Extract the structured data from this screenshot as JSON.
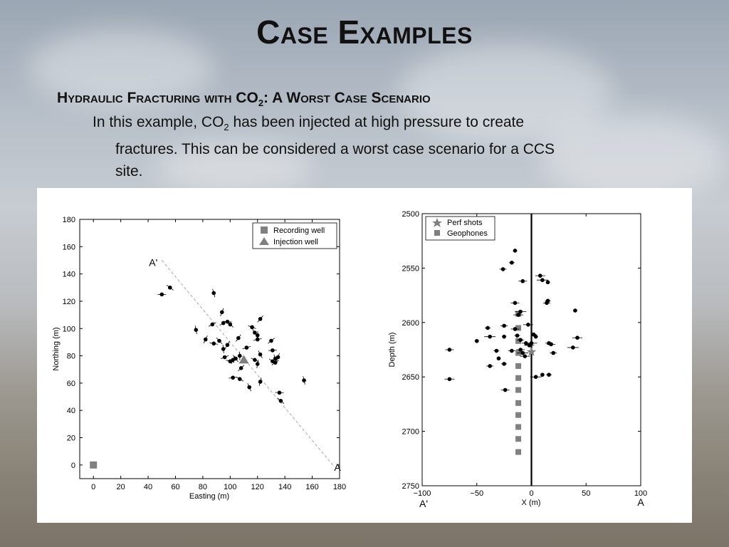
{
  "slide": {
    "title": "Case Examples",
    "subtitle_pre": "Hydraulic Fracturing with CO",
    "subtitle_sub": "2",
    "subtitle_post": ": A Worst Case Scenario",
    "body_pre": "In this example, CO",
    "body_sub": "2",
    "body_line1_post": " has been injected at high pressure to create",
    "body_line2": "fractures. This can be considered a worst case scenario for a CCS",
    "body_line3": "site."
  },
  "colors": {
    "marker_gray": "#808080",
    "event_black": "#000000",
    "section_line": "#aaaaaa"
  },
  "chart_data": [
    {
      "type": "scatter",
      "title": "",
      "xlabel": "Easting (m)",
      "ylabel": "Northing (m)",
      "xlim": [
        -10,
        180
      ],
      "ylim": [
        -10,
        180
      ],
      "xticks": [
        0,
        20,
        40,
        60,
        80,
        100,
        120,
        140,
        160,
        180
      ],
      "yticks": [
        0,
        20,
        40,
        60,
        80,
        100,
        120,
        140,
        160,
        180
      ],
      "legend": {
        "placement": "top-right",
        "entries": [
          "Recording well",
          "Injection well"
        ]
      },
      "recording_well": {
        "x": 0,
        "y": 0
      },
      "injection_well": {
        "x": 110,
        "y": 77
      },
      "section_line": {
        "start": {
          "x": 50,
          "y": 150
        },
        "end": {
          "x": 175,
          "y": 0
        },
        "start_label": "A'",
        "end_label": "A"
      },
      "events": [
        {
          "x": 50,
          "y": 125
        },
        {
          "x": 56,
          "y": 130
        },
        {
          "x": 88,
          "y": 126
        },
        {
          "x": 94,
          "y": 112
        },
        {
          "x": 95,
          "y": 104
        },
        {
          "x": 98,
          "y": 105
        },
        {
          "x": 100,
          "y": 103
        },
        {
          "x": 75,
          "y": 99
        },
        {
          "x": 82,
          "y": 92
        },
        {
          "x": 87,
          "y": 103
        },
        {
          "x": 88,
          "y": 89
        },
        {
          "x": 92,
          "y": 91
        },
        {
          "x": 95,
          "y": 85
        },
        {
          "x": 98,
          "y": 88
        },
        {
          "x": 96,
          "y": 79
        },
        {
          "x": 100,
          "y": 76
        },
        {
          "x": 104,
          "y": 78
        },
        {
          "x": 107,
          "y": 80
        },
        {
          "x": 106,
          "y": 93
        },
        {
          "x": 112,
          "y": 86
        },
        {
          "x": 116,
          "y": 101
        },
        {
          "x": 118,
          "y": 97
        },
        {
          "x": 120,
          "y": 95
        },
        {
          "x": 122,
          "y": 107
        },
        {
          "x": 120,
          "y": 92
        },
        {
          "x": 118,
          "y": 77
        },
        {
          "x": 122,
          "y": 81
        },
        {
          "x": 120,
          "y": 74
        },
        {
          "x": 108,
          "y": 71
        },
        {
          "x": 102,
          "y": 64
        },
        {
          "x": 107,
          "y": 63
        },
        {
          "x": 114,
          "y": 57
        },
        {
          "x": 122,
          "y": 61
        },
        {
          "x": 130,
          "y": 91
        },
        {
          "x": 131,
          "y": 84
        },
        {
          "x": 131,
          "y": 76
        },
        {
          "x": 133,
          "y": 78
        },
        {
          "x": 135,
          "y": 79
        },
        {
          "x": 133,
          "y": 75
        },
        {
          "x": 136,
          "y": 53
        },
        {
          "x": 137,
          "y": 47
        },
        {
          "x": 154,
          "y": 62
        },
        {
          "x": 102,
          "y": 77
        }
      ]
    },
    {
      "type": "scatter",
      "title": "",
      "xlabel": "X (m)",
      "ylabel": "Depth (m)",
      "xlim": [
        -100,
        100
      ],
      "ylim": [
        2750,
        2500
      ],
      "xticks": [
        -100,
        -50,
        0,
        50,
        100
      ],
      "yticks": [
        2500,
        2550,
        2600,
        2650,
        2700,
        2750
      ],
      "legend": {
        "placement": "top-left",
        "entries": [
          "Perf shots",
          "Geophones"
        ]
      },
      "well_x": 0,
      "section_labels": {
        "left": "A'",
        "right": "A"
      },
      "perf_shots": [
        {
          "x": 0,
          "y": 2627
        }
      ],
      "geophones": [
        {
          "x": -12,
          "y": 2592
        },
        {
          "x": -12,
          "y": 2605
        },
        {
          "x": -12,
          "y": 2617
        },
        {
          "x": -12,
          "y": 2628
        },
        {
          "x": -12,
          "y": 2640
        },
        {
          "x": -12,
          "y": 2651
        },
        {
          "x": -12,
          "y": 2662
        },
        {
          "x": -12,
          "y": 2674
        },
        {
          "x": -12,
          "y": 2685
        },
        {
          "x": -12,
          "y": 2696
        },
        {
          "x": -12,
          "y": 2707
        },
        {
          "x": -12,
          "y": 2719
        }
      ],
      "events": [
        {
          "x": -15,
          "y": 2534
        },
        {
          "x": -18,
          "y": 2545
        },
        {
          "x": -26,
          "y": 2551
        },
        {
          "x": -8,
          "y": 2562
        },
        {
          "x": 8,
          "y": 2557
        },
        {
          "x": 10,
          "y": 2561
        },
        {
          "x": 15,
          "y": 2563
        },
        {
          "x": 15,
          "y": 2580
        },
        {
          "x": 14,
          "y": 2582
        },
        {
          "x": -15,
          "y": 2582
        },
        {
          "x": -12,
          "y": 2593
        },
        {
          "x": -10,
          "y": 2590
        },
        {
          "x": 40,
          "y": 2589
        },
        {
          "x": -40,
          "y": 2605
        },
        {
          "x": -25,
          "y": 2603
        },
        {
          "x": -15,
          "y": 2606
        },
        {
          "x": -3,
          "y": 2602
        },
        {
          "x": -38,
          "y": 2613
        },
        {
          "x": -25,
          "y": 2613
        },
        {
          "x": -13,
          "y": 2612
        },
        {
          "x": -10,
          "y": 2616
        },
        {
          "x": -5,
          "y": 2619
        },
        {
          "x": -2,
          "y": 2621
        },
        {
          "x": 0,
          "y": 2619
        },
        {
          "x": 4,
          "y": 2613
        },
        {
          "x": 2,
          "y": 2611
        },
        {
          "x": 16,
          "y": 2619
        },
        {
          "x": 18,
          "y": 2620
        },
        {
          "x": 42,
          "y": 2614
        },
        {
          "x": 38,
          "y": 2623
        },
        {
          "x": -50,
          "y": 2617
        },
        {
          "x": -32,
          "y": 2626
        },
        {
          "x": -18,
          "y": 2626
        },
        {
          "x": -10,
          "y": 2625
        },
        {
          "x": -6,
          "y": 2631
        },
        {
          "x": -8,
          "y": 2628
        },
        {
          "x": -30,
          "y": 2633
        },
        {
          "x": -25,
          "y": 2638
        },
        {
          "x": -38,
          "y": 2640
        },
        {
          "x": -75,
          "y": 2625
        },
        {
          "x": -75,
          "y": 2652
        },
        {
          "x": 4,
          "y": 2650
        },
        {
          "x": 10,
          "y": 2648
        },
        {
          "x": 16,
          "y": 2648
        },
        {
          "x": 20,
          "y": 2628
        },
        {
          "x": -24,
          "y": 2662
        }
      ]
    }
  ]
}
